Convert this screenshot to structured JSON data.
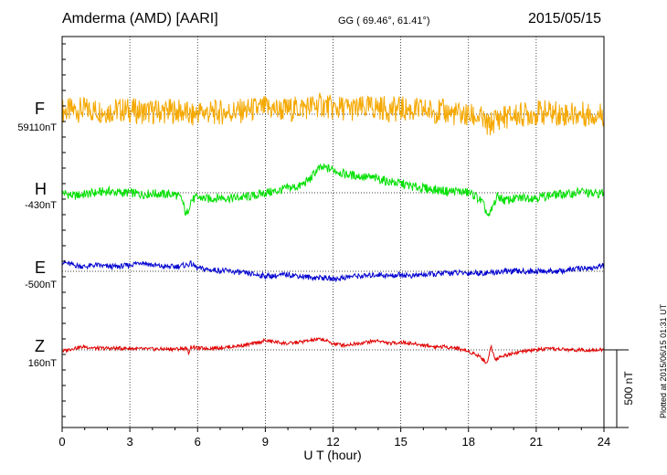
{
  "header": {
    "station": "Amderma (AMD)  [AARI]",
    "coordinates": "GG ( 69.46°,  61.41°)",
    "date": "2015/05/15"
  },
  "footer_note": "Plotted at 2015/06/15 01:31  UT",
  "chart_data": {
    "type": "line",
    "xlabel": "U T (hour)",
    "xlim": [
      0,
      24
    ],
    "x_ticks": [
      "0",
      "3",
      "6",
      "9",
      "12",
      "15",
      "18",
      "21",
      "24"
    ],
    "scale_bar": "500 nT",
    "grid": "dotted vertical lines every 3 hours",
    "series": [
      {
        "name": "F",
        "baseline_label": "59110nT",
        "color": "#f5a800",
        "x": [
          0,
          0.5,
          1,
          1.5,
          2,
          2.5,
          3,
          3.5,
          4,
          4.5,
          5,
          5.5,
          5.7,
          6,
          6.5,
          7,
          7.5,
          8,
          8.5,
          9,
          9.5,
          10,
          10.5,
          11,
          11.5,
          11.8,
          12,
          12.5,
          13,
          13.5,
          14,
          14.5,
          15,
          15.5,
          16,
          16.5,
          17,
          17.5,
          18,
          18.5,
          18.9,
          19.2,
          19.5,
          20,
          20.5,
          21,
          21.5,
          22,
          22.5,
          23,
          23.5,
          24
        ],
        "values": [
          20,
          25,
          30,
          25,
          20,
          28,
          25,
          15,
          15,
          18,
          20,
          10,
          -20,
          15,
          10,
          12,
          15,
          20,
          30,
          40,
          30,
          28,
          40,
          50,
          60,
          50,
          35,
          40,
          30,
          40,
          45,
          30,
          35,
          25,
          25,
          20,
          15,
          0,
          -10,
          -20,
          -80,
          -30,
          -20,
          -10,
          0,
          10,
          10,
          5,
          0,
          0,
          0,
          0
        ]
      },
      {
        "name": "H",
        "baseline_label": "-430nT",
        "color": "#00e000",
        "x": [
          0,
          0.5,
          1,
          1.5,
          2,
          2.5,
          3,
          3.5,
          4,
          4.5,
          5,
          5.3,
          5.5,
          5.7,
          6,
          6.5,
          7,
          7.5,
          8,
          8.5,
          9,
          9.5,
          10,
          10.5,
          11,
          11.3,
          11.6,
          12,
          12.5,
          13,
          13.5,
          14,
          14.5,
          15,
          15.5,
          16,
          16.5,
          17,
          17.5,
          18,
          18.3,
          18.6,
          18.9,
          19.1,
          19.3,
          19.6,
          20,
          20.5,
          21,
          21.5,
          22,
          22.5,
          23,
          23.5,
          24
        ],
        "values": [
          0,
          -20,
          -10,
          0,
          10,
          0,
          0,
          -10,
          -5,
          -10,
          -10,
          -40,
          -150,
          -50,
          -30,
          -40,
          -30,
          -35,
          -30,
          -20,
          0,
          10,
          30,
          40,
          90,
          150,
          160,
          150,
          120,
          110,
          100,
          90,
          70,
          60,
          40,
          30,
          20,
          10,
          10,
          0,
          -20,
          -60,
          -160,
          -80,
          -20,
          -50,
          -40,
          -30,
          -30,
          -20,
          -10,
          -10,
          10,
          -10,
          0
        ]
      },
      {
        "name": "E",
        "baseline_label": "-500nT",
        "color": "#0000d0",
        "x": [
          0,
          0.5,
          1,
          1.5,
          2,
          2.5,
          3,
          3.5,
          4,
          4.5,
          5,
          5.5,
          5.7,
          6,
          6.5,
          7,
          7.5,
          8,
          8.5,
          9,
          9.5,
          10,
          10.5,
          11,
          11.5,
          12,
          12.5,
          13,
          13.5,
          14,
          14.5,
          15,
          15.5,
          16,
          16.5,
          17,
          17.5,
          18,
          18.5,
          19,
          19.5,
          20,
          20.5,
          21,
          21.5,
          22,
          22.5,
          23,
          23.5,
          24
        ],
        "values": [
          60,
          40,
          30,
          40,
          30,
          30,
          40,
          60,
          40,
          30,
          30,
          40,
          50,
          20,
          10,
          5,
          0,
          -10,
          -20,
          -30,
          -30,
          -20,
          -30,
          -40,
          -40,
          -50,
          -40,
          -30,
          -30,
          -20,
          -30,
          -20,
          -30,
          -20,
          -20,
          -10,
          -10,
          -10,
          -10,
          -10,
          0,
          0,
          0,
          0,
          0,
          0,
          10,
          20,
          20,
          40
        ]
      },
      {
        "name": "Z",
        "baseline_label": "160nT",
        "color": "#e00000",
        "x": [
          0,
          0.5,
          1,
          1.5,
          2,
          2.5,
          3,
          3.5,
          4,
          4.5,
          5,
          5.5,
          5.6,
          5.7,
          6,
          6.5,
          7,
          7.5,
          8,
          8.5,
          9,
          9.5,
          10,
          10.5,
          11,
          11.5,
          12,
          12.5,
          13,
          13.5,
          14,
          14.5,
          15,
          15.5,
          16,
          16.5,
          17,
          17.5,
          18,
          18.5,
          18.8,
          19,
          19.2,
          19.5,
          20,
          20.5,
          21,
          21.5,
          22,
          22.5,
          23,
          23.5,
          24
        ],
        "values": [
          -10,
          10,
          20,
          10,
          10,
          10,
          10,
          5,
          5,
          5,
          5,
          10,
          -20,
          20,
          10,
          10,
          15,
          20,
          30,
          40,
          60,
          50,
          40,
          50,
          60,
          70,
          40,
          30,
          40,
          50,
          60,
          40,
          50,
          40,
          30,
          20,
          20,
          10,
          -10,
          -40,
          -90,
          20,
          -60,
          -40,
          -20,
          -10,
          0,
          5,
          5,
          0,
          0,
          0,
          0
        ]
      }
    ]
  }
}
